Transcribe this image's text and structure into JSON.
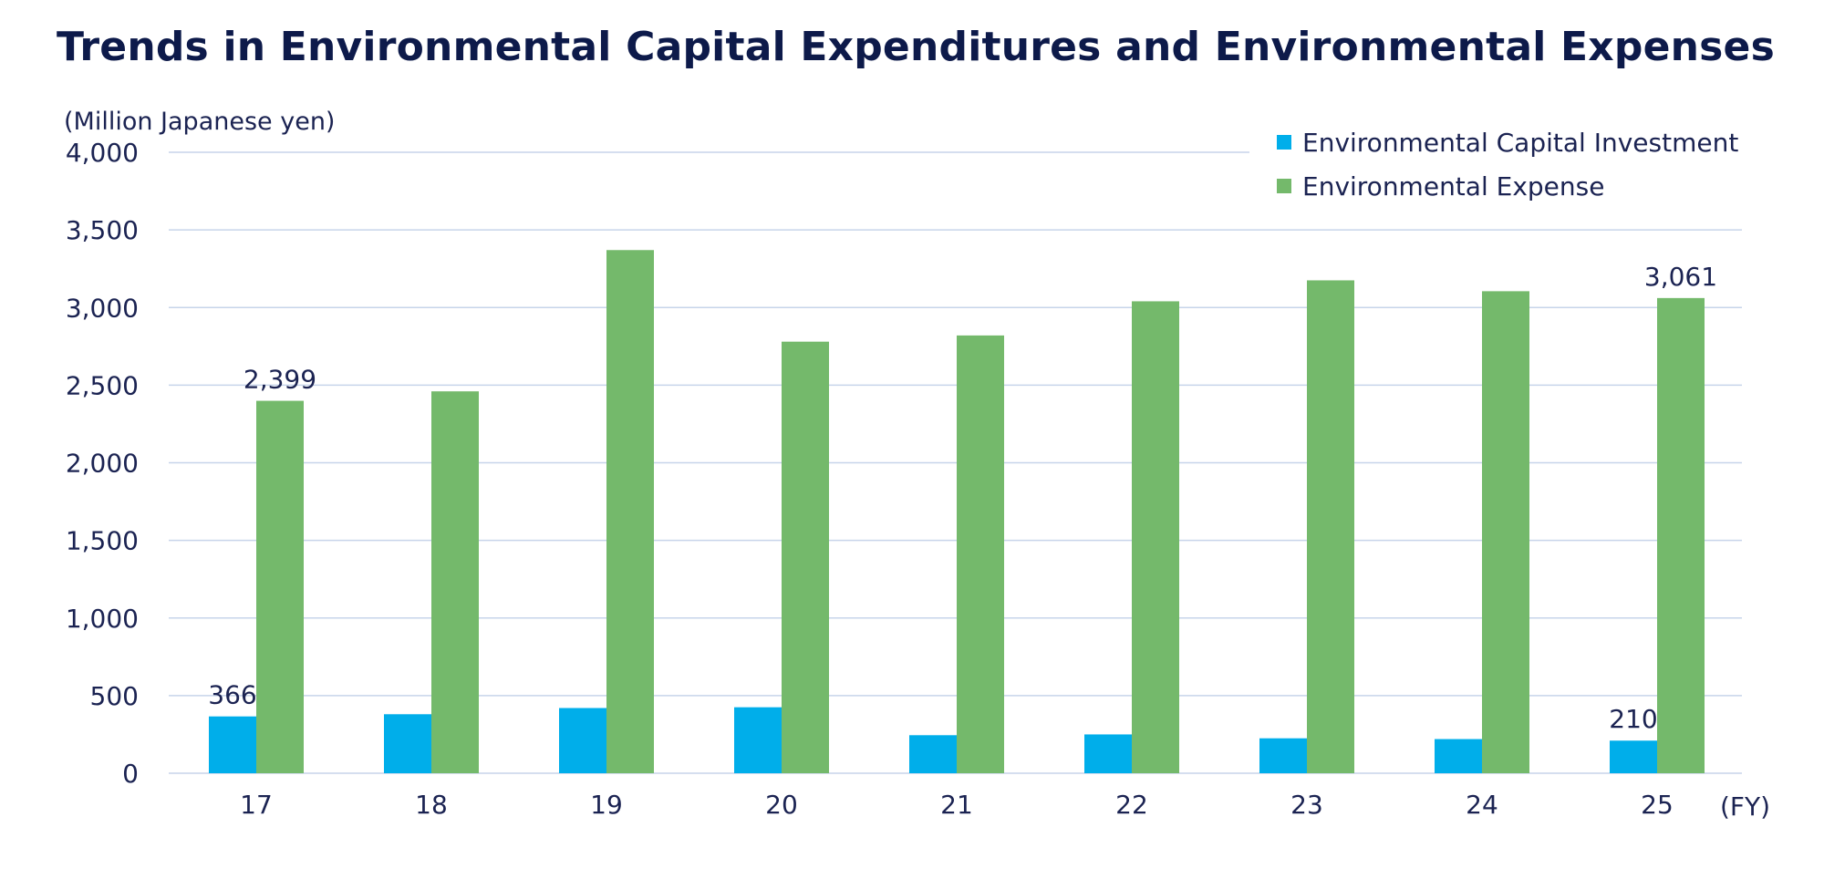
{
  "title": "Trends in Environmental Capital Expenditures and Environmental Expenses",
  "colors": {
    "capital_investment": "#00aeea",
    "expense": "#74b96b",
    "grid": "#c7d4ea",
    "text": "#1b2352"
  },
  "chart_data": {
    "type": "bar",
    "title": "Trends in Environmental Capital Expenditures and Environmental Expenses",
    "ylabel": "(Million Japanese yen)",
    "xlabel": "(FY)",
    "ylim": [
      0,
      4000
    ],
    "yticks": [
      0,
      500,
      1000,
      1500,
      2000,
      2500,
      3000,
      3500,
      4000
    ],
    "ytick_labels": [
      "0",
      "500",
      "1,000",
      "1,500",
      "2,000",
      "2,500",
      "3,000",
      "3,500",
      "4,000"
    ],
    "grid": true,
    "legend_position": "top-right",
    "categories": [
      "17",
      "18",
      "19",
      "20",
      "21",
      "22",
      "23",
      "24",
      "25"
    ],
    "series": [
      {
        "name": "Environmental Capital Investment",
        "color": "#00aeea",
        "values": [
          366,
          380,
          420,
          425,
          245,
          250,
          225,
          220,
          210
        ]
      },
      {
        "name": "Environmental Expense",
        "color": "#74b96b",
        "values": [
          2399,
          2460,
          3370,
          2780,
          2820,
          3040,
          3175,
          3105,
          3061
        ]
      }
    ],
    "data_labels": [
      {
        "series": 0,
        "index": 0,
        "text": "366"
      },
      {
        "series": 1,
        "index": 0,
        "text": "2,399"
      },
      {
        "series": 0,
        "index": 8,
        "text": "210"
      },
      {
        "series": 1,
        "index": 8,
        "text": "3,061"
      }
    ]
  }
}
